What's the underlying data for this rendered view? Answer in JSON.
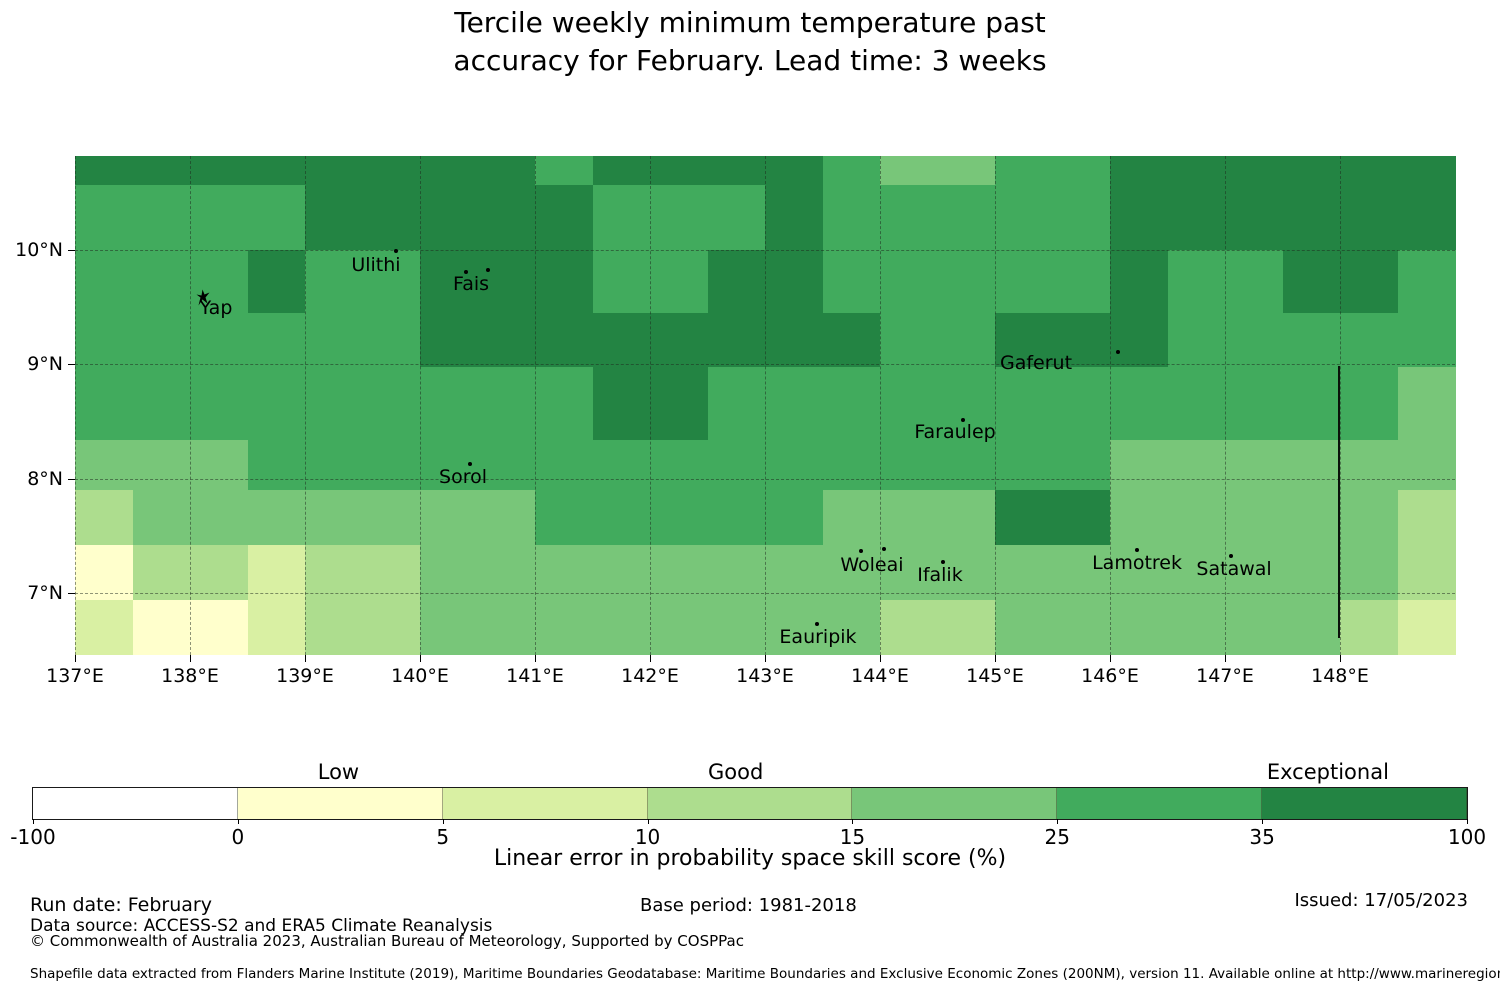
{
  "title": {
    "line1": "Tercile weekly minimum temperature past",
    "line2": "accuracy for February. Lead time: 3 weeks"
  },
  "chart_data": {
    "type": "heatmap",
    "projection": "lon-lat grid map, Federated States of Micronesia / Yap region",
    "x_axis": {
      "range": [
        137,
        149
      ],
      "ticks": [
        {
          "value": 137,
          "label": "137°E"
        },
        {
          "value": 138,
          "label": "138°E"
        },
        {
          "value": 139,
          "label": "139°E"
        },
        {
          "value": 140,
          "label": "140°E"
        },
        {
          "value": 141,
          "label": "141°E"
        },
        {
          "value": 142,
          "label": "142°E"
        },
        {
          "value": 143,
          "label": "143°E"
        },
        {
          "value": 144,
          "label": "144°E"
        },
        {
          "value": 145,
          "label": "145°E"
        },
        {
          "value": 146,
          "label": "146°E"
        },
        {
          "value": 147,
          "label": "147°E"
        },
        {
          "value": 148,
          "label": "148°E"
        }
      ]
    },
    "y_axis": {
      "range_top": 10.82,
      "range_bottom": 6.46,
      "ticks": [
        {
          "value": 10,
          "label": "10°N"
        },
        {
          "value": 9,
          "label": "9°N"
        },
        {
          "value": 8,
          "label": "8°N"
        },
        {
          "value": 7,
          "label": "7°N"
        }
      ]
    },
    "bins": [
      {
        "min": -100,
        "max": 0,
        "color": "#ffffff"
      },
      {
        "min": 0,
        "max": 5,
        "color": "#ffffcc"
      },
      {
        "min": 5,
        "max": 10,
        "color": "#d9f0a3"
      },
      {
        "min": 10,
        "max": 15,
        "color": "#addd8e"
      },
      {
        "min": 15,
        "max": 25,
        "color": "#78c679"
      },
      {
        "min": 25,
        "max": 35,
        "color": "#41ab5d"
      },
      {
        "min": 35,
        "max": 100,
        "color": "#238443"
      }
    ],
    "row_bounds_pct": [
      0,
      5.81,
      18.84,
      31.46,
      42.28,
      56.91,
      66.93,
      77.96,
      88.98,
      100
    ],
    "n_cols": 24,
    "grid_bin_indices": [
      [
        6,
        6,
        6,
        6,
        6,
        6,
        6,
        6,
        5,
        6,
        6,
        6,
        6,
        5,
        4,
        4,
        5,
        5,
        6,
        6,
        6,
        6,
        6,
        6
      ],
      [
        5,
        5,
        5,
        5,
        6,
        6,
        6,
        6,
        6,
        5,
        5,
        5,
        6,
        5,
        5,
        5,
        5,
        5,
        6,
        6,
        6,
        6,
        6,
        6
      ],
      [
        5,
        5,
        5,
        6,
        5,
        5,
        6,
        6,
        6,
        5,
        5,
        6,
        6,
        5,
        5,
        5,
        5,
        5,
        6,
        5,
        5,
        6,
        6,
        5
      ],
      [
        5,
        5,
        5,
        5,
        5,
        5,
        6,
        6,
        6,
        6,
        6,
        6,
        6,
        6,
        5,
        5,
        6,
        6,
        6,
        5,
        5,
        5,
        5,
        5
      ],
      [
        5,
        5,
        5,
        5,
        5,
        5,
        5,
        5,
        5,
        6,
        6,
        5,
        5,
        5,
        5,
        5,
        5,
        5,
        5,
        5,
        5,
        5,
        5,
        4
      ],
      [
        4,
        4,
        4,
        5,
        5,
        5,
        5,
        5,
        5,
        5,
        5,
        5,
        5,
        5,
        5,
        5,
        5,
        5,
        4,
        4,
        4,
        4,
        4,
        4
      ],
      [
        3,
        4,
        4,
        4,
        4,
        4,
        4,
        4,
        5,
        5,
        5,
        5,
        5,
        4,
        4,
        4,
        6,
        6,
        4,
        4,
        4,
        4,
        4,
        3
      ],
      [
        1,
        3,
        3,
        2,
        3,
        3,
        4,
        4,
        4,
        4,
        4,
        4,
        4,
        4,
        4,
        4,
        4,
        4,
        4,
        4,
        4,
        4,
        4,
        3
      ],
      [
        2,
        1,
        1,
        2,
        3,
        3,
        4,
        4,
        4,
        4,
        4,
        4,
        4,
        4,
        3,
        3,
        4,
        4,
        4,
        4,
        4,
        4,
        3,
        2
      ]
    ],
    "islands": [
      {
        "name": "Yap",
        "x_pct": 10.22,
        "y_pct": 30.46,
        "dots": [],
        "shape": "yap"
      },
      {
        "name": "Ulithi",
        "x_pct": 21.81,
        "y_pct": 21.84,
        "dots": [
          [
            23.26,
            19.04
          ]
        ]
      },
      {
        "name": "Fais",
        "x_pct": 28.7,
        "y_pct": 25.65,
        "dots": [
          [
            28.35,
            23.2
          ],
          [
            29.9,
            22.8
          ]
        ]
      },
      {
        "name": "Gaferut",
        "x_pct": 69.64,
        "y_pct": 41.48,
        "dots": [
          [
            75.58,
            39.28
          ]
        ]
      },
      {
        "name": "Faraulep",
        "x_pct": 63.77,
        "y_pct": 55.31,
        "dots": [
          [
            64.35,
            52.91
          ]
        ]
      },
      {
        "name": "Sorol",
        "x_pct": 28.12,
        "y_pct": 64.33,
        "dots": [
          [
            28.62,
            61.72
          ]
        ]
      },
      {
        "name": "Woleai",
        "x_pct": 57.75,
        "y_pct": 81.96,
        "dots": [
          [
            56.96,
            79.16
          ],
          [
            58.62,
            78.76
          ]
        ]
      },
      {
        "name": "Ifalik",
        "x_pct": 62.68,
        "y_pct": 83.97,
        "dots": [
          [
            62.9,
            81.36
          ]
        ]
      },
      {
        "name": "Lamotrek",
        "x_pct": 76.96,
        "y_pct": 81.56,
        "dots": [
          [
            76.96,
            78.96
          ]
        ]
      },
      {
        "name": "Satawal",
        "x_pct": 83.99,
        "y_pct": 82.77,
        "dots": [
          [
            83.77,
            80.16
          ]
        ]
      },
      {
        "name": "Eauripik",
        "x_pct": 53.84,
        "y_pct": 96.39,
        "dots": [
          [
            53.77,
            93.79
          ]
        ]
      }
    ],
    "boundary_line": {
      "x_pct": 91.55,
      "y_top_pct": 42.08,
      "y_bottom_pct": 96.59
    }
  },
  "colorbar": {
    "tick_labels": [
      "-100",
      "0",
      "5",
      "10",
      "15",
      "25",
      "35",
      "100"
    ],
    "categories": [
      {
        "label": "Low",
        "pct": 21.3
      },
      {
        "label": "Good",
        "pct": 49.0
      },
      {
        "label": "Exceptional",
        "pct": 90.3
      }
    ],
    "axis_label": "Linear error in probability space skill score (%)"
  },
  "footer": {
    "run_date": "Run date: February",
    "data_source": "Data source: ACCESS-S2 and ERA5 Climate Reanalysis",
    "copyright": "© Commonwealth of Australia 2023, Australian Bureau of Meteorology, Supported by COSPPac",
    "base_period": "Base period: 1981-2018",
    "issued": "Issued: 17/05/2023",
    "shapefile_note": "Shapefile data extracted from Flanders Marine Institute (2019), Maritime Boundaries Geodatabase: Maritime Boundaries and Exclusive Economic Zones (200NM), version 11. Available online at http://www.marineregions.org/."
  }
}
